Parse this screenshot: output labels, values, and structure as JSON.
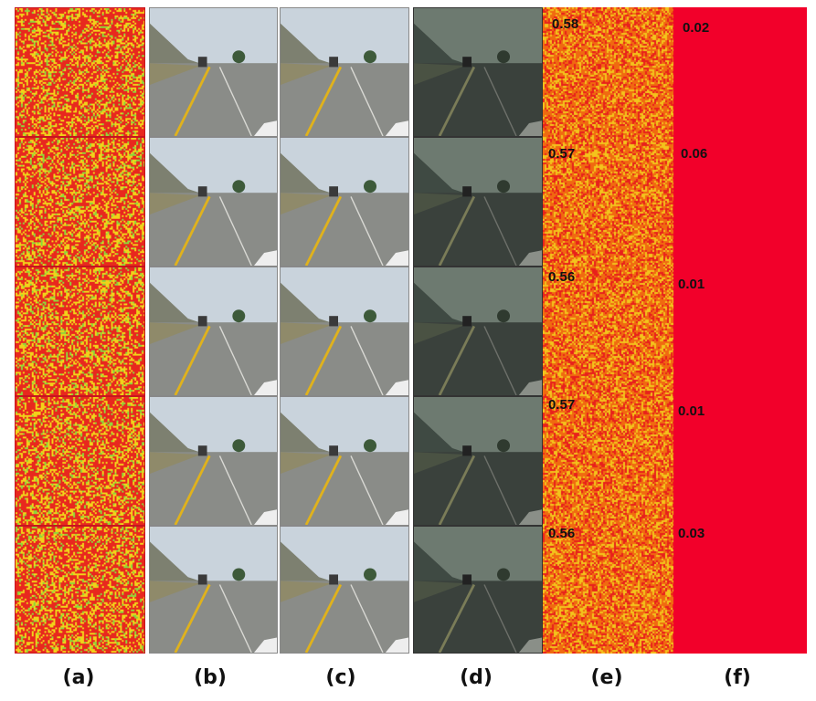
{
  "panels": {
    "a": {
      "caption": "(a)"
    },
    "b": {
      "caption": "(b)"
    },
    "c": {
      "caption": "(c)"
    },
    "d": {
      "caption": "(d)"
    },
    "e": {
      "caption": "(e)",
      "scores": [
        "0.58",
        "0.57",
        "0.56",
        "0.57",
        "0.56"
      ]
    },
    "f": {
      "caption": "(f)",
      "scores": [
        "0.02",
        "0.06",
        "0.01",
        "0.01",
        "0.03"
      ]
    }
  },
  "colors": {
    "noise_red": "#e8281e",
    "noise_yellow": "#f1d21a",
    "noise_green": "#8fd63a",
    "heat_e": "#f06a10",
    "heat_f": "#f2002a"
  }
}
